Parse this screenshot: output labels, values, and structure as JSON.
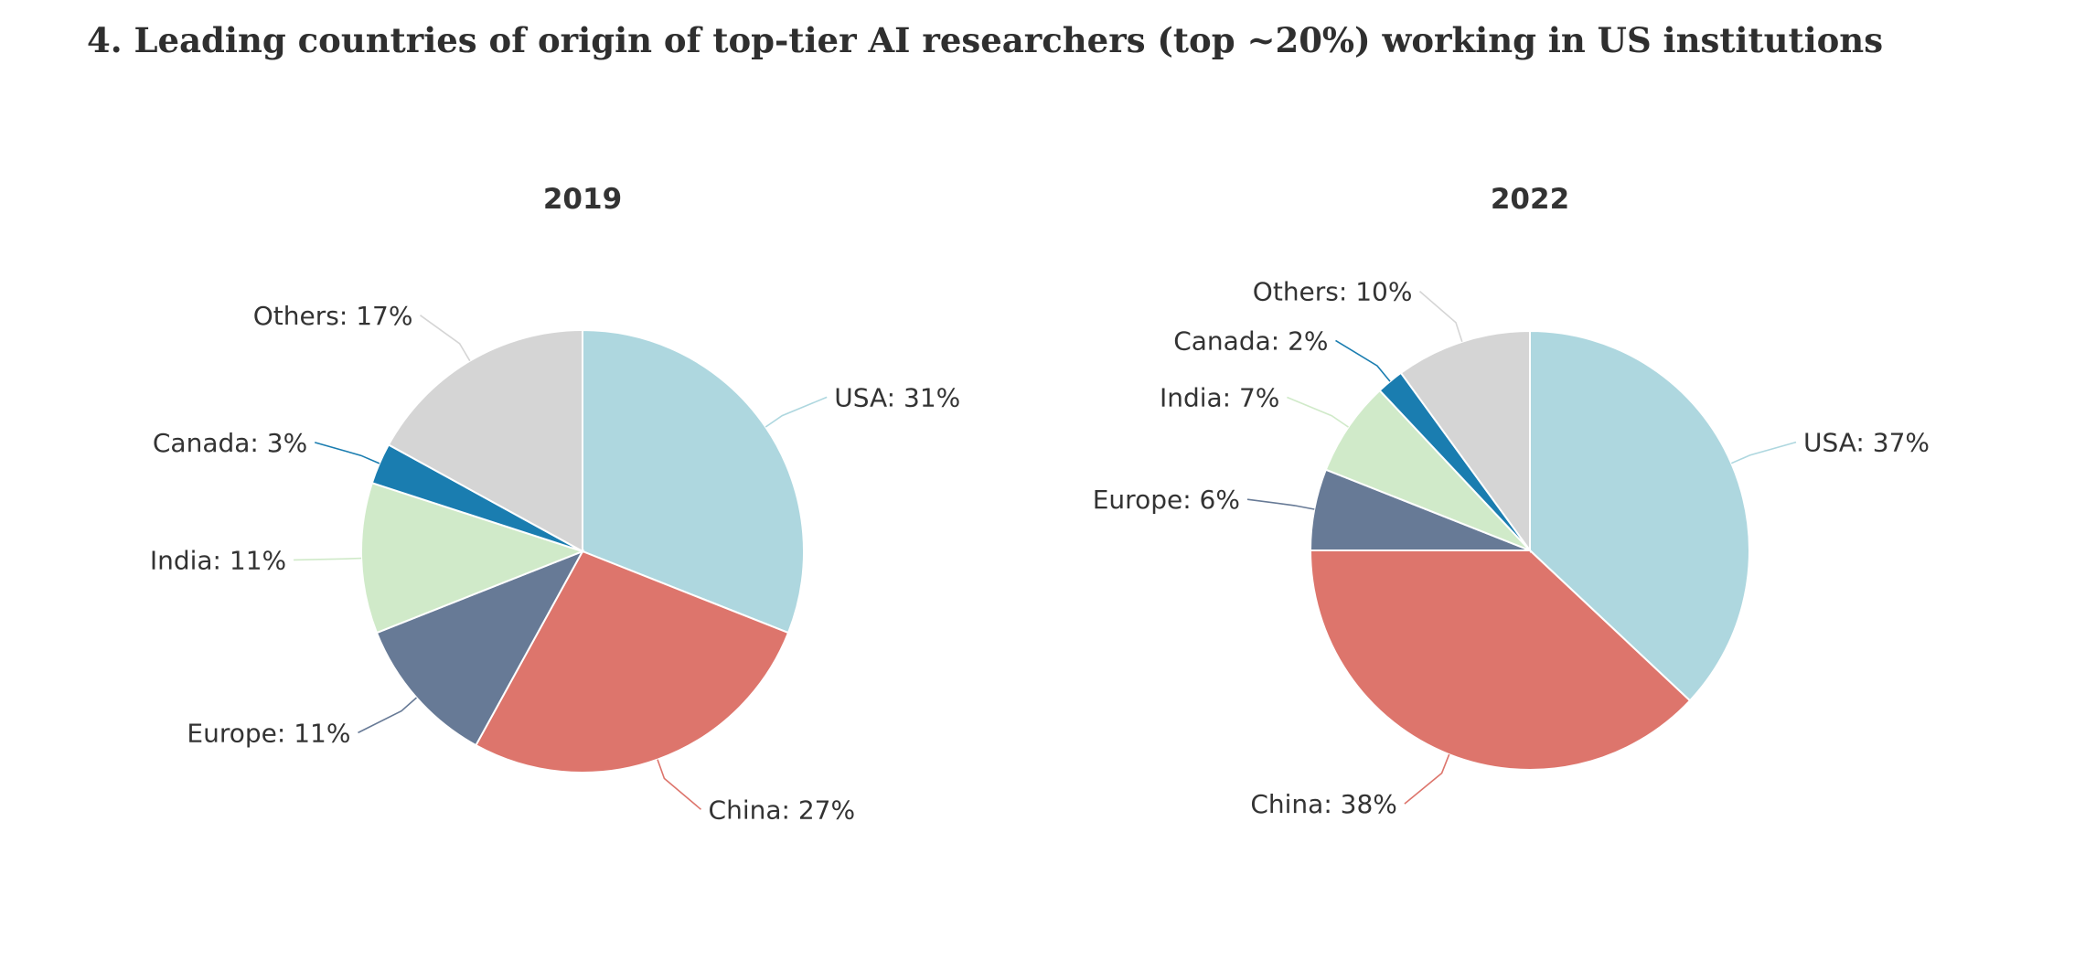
{
  "title": "4. Leading countries of origin of top-tier AI researchers (top ~20%) working in US institutions",
  "chart_data": [
    {
      "type": "pie",
      "title": "2019",
      "slices": [
        {
          "name": "USA",
          "value": 31,
          "label": "USA: 31%",
          "color": "#aed7df"
        },
        {
          "name": "China",
          "value": 27,
          "label": "China: 27%",
          "color": "#dd756c"
        },
        {
          "name": "Europe",
          "value": 11,
          "label": "Europe: 11%",
          "color": "#677a96"
        },
        {
          "name": "India",
          "value": 11,
          "label": "India: 11%",
          "color": "#d0eac9"
        },
        {
          "name": "Canada",
          "value": 3,
          "label": "Canada: 3%",
          "color": "#1a7db0"
        },
        {
          "name": "Others",
          "value": 17,
          "label": "Others: 17%",
          "color": "#d5d5d5"
        }
      ]
    },
    {
      "type": "pie",
      "title": "2022",
      "slices": [
        {
          "name": "USA",
          "value": 37,
          "label": "USA: 37%",
          "color": "#aed7df"
        },
        {
          "name": "China",
          "value": 38,
          "label": "China: 38%",
          "color": "#dd756c"
        },
        {
          "name": "Europe",
          "value": 6,
          "label": "Europe: 6%",
          "color": "#677a96"
        },
        {
          "name": "India",
          "value": 7,
          "label": "India: 7%",
          "color": "#d0eac9"
        },
        {
          "name": "Canada",
          "value": 2,
          "label": "Canada: 2%",
          "color": "#1a7db0"
        },
        {
          "name": "Others",
          "value": 10,
          "label": "Others: 10%",
          "color": "#d5d5d5"
        }
      ]
    }
  ]
}
